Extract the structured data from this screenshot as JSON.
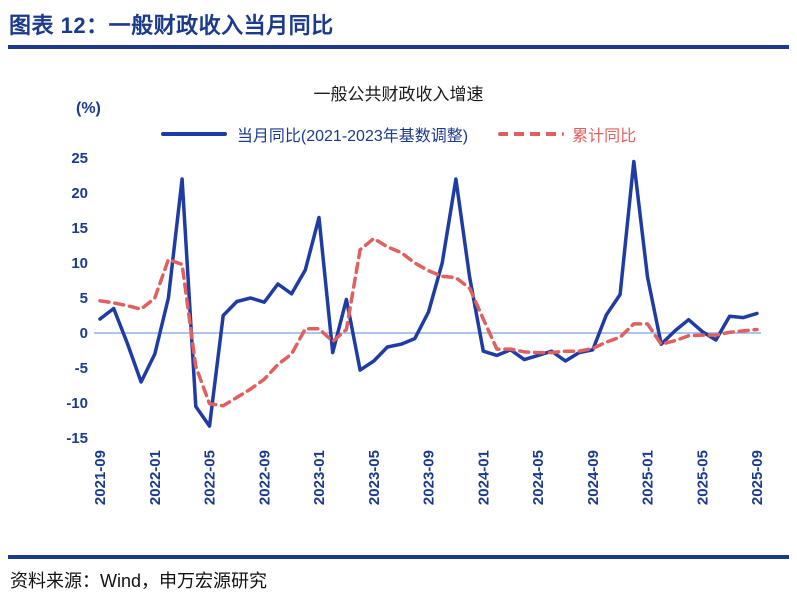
{
  "header": {
    "title": "图表 12：一般财政收入当月同比"
  },
  "footer": {
    "source": "资料来源：Wind，申万宏源研究"
  },
  "colors": {
    "navy": "#1B3A8C",
    "line_blue": "#1E3CA3",
    "line_red": "#E06060",
    "zero_line": "#8FB4E3",
    "text_dark": "#111111"
  },
  "chart_data": {
    "type": "line",
    "title": "一般公共财政收入增速",
    "unit_label": "(%)",
    "xlabel": "",
    "ylabel": "(%)",
    "ylim": [
      -15,
      25
    ],
    "ytick_step": 5,
    "grid": false,
    "legend_position": "top",
    "xtick_every": 4,
    "x": [
      "2021-09",
      "2021-10",
      "2021-11",
      "2021-12",
      "2022-01",
      "2022-02",
      "2022-03",
      "2022-04",
      "2022-05",
      "2022-06",
      "2022-07",
      "2022-08",
      "2022-09",
      "2022-10",
      "2022-11",
      "2022-12",
      "2023-01",
      "2023-02",
      "2023-03",
      "2023-04",
      "2023-05",
      "2023-06",
      "2023-07",
      "2023-08",
      "2023-09",
      "2023-10",
      "2023-11",
      "2023-12",
      "2024-01",
      "2024-02",
      "2024-03",
      "2024-04",
      "2024-05",
      "2024-06",
      "2024-07",
      "2024-08",
      "2024-09",
      "2024-10",
      "2024-11",
      "2024-12",
      "2025-01",
      "2025-02",
      "2025-03",
      "2025-04",
      "2025-05",
      "2025-06",
      "2025-07",
      "2025-08",
      "2025-09"
    ],
    "series": [
      {
        "name": "当月同比(2021-2023年基数调整)",
        "style": "solid",
        "color": "#1E3CA3",
        "values": [
          2,
          3.5,
          -1.5,
          -7,
          -3,
          5,
          22,
          -10.5,
          -13.3,
          2.5,
          4.5,
          5,
          4.4,
          7,
          5.6,
          9,
          16.5,
          -2.8,
          4.8,
          -5.3,
          -4,
          -2,
          -1.6,
          -0.8,
          3,
          10,
          22,
          8,
          -2.6,
          -3.2,
          -2.4,
          -3.8,
          -3.2,
          -2.6,
          -4,
          -2.8,
          -2.4,
          2.6,
          5.5,
          24.5,
          8,
          -1.6,
          0.3,
          1.9,
          0.2,
          -1,
          2.4,
          2.2,
          2.8
        ]
      },
      {
        "name": "累计同比",
        "style": "dashed",
        "color": "#E06060",
        "values": [
          4.6,
          4.3,
          3.9,
          3.4,
          5,
          10.5,
          9.8,
          -4.8,
          -10.1,
          -10.4,
          -9.2,
          -8,
          -6.6,
          -4.5,
          -3,
          0.6,
          0.6,
          -1.2,
          0.5,
          11.9,
          13.5,
          12.3,
          11.5,
          10,
          8.9,
          8.1,
          7.9,
          6.4,
          2,
          -2.3,
          -2.3,
          -2.7,
          -2.8,
          -2.8,
          -2.6,
          -2.6,
          -2.2,
          -1.3,
          -0.6,
          1.3,
          1.3,
          -1.6,
          -1.1,
          -0.4,
          -0.3,
          -0.3,
          0.1,
          0.3,
          0.5
        ]
      }
    ]
  }
}
